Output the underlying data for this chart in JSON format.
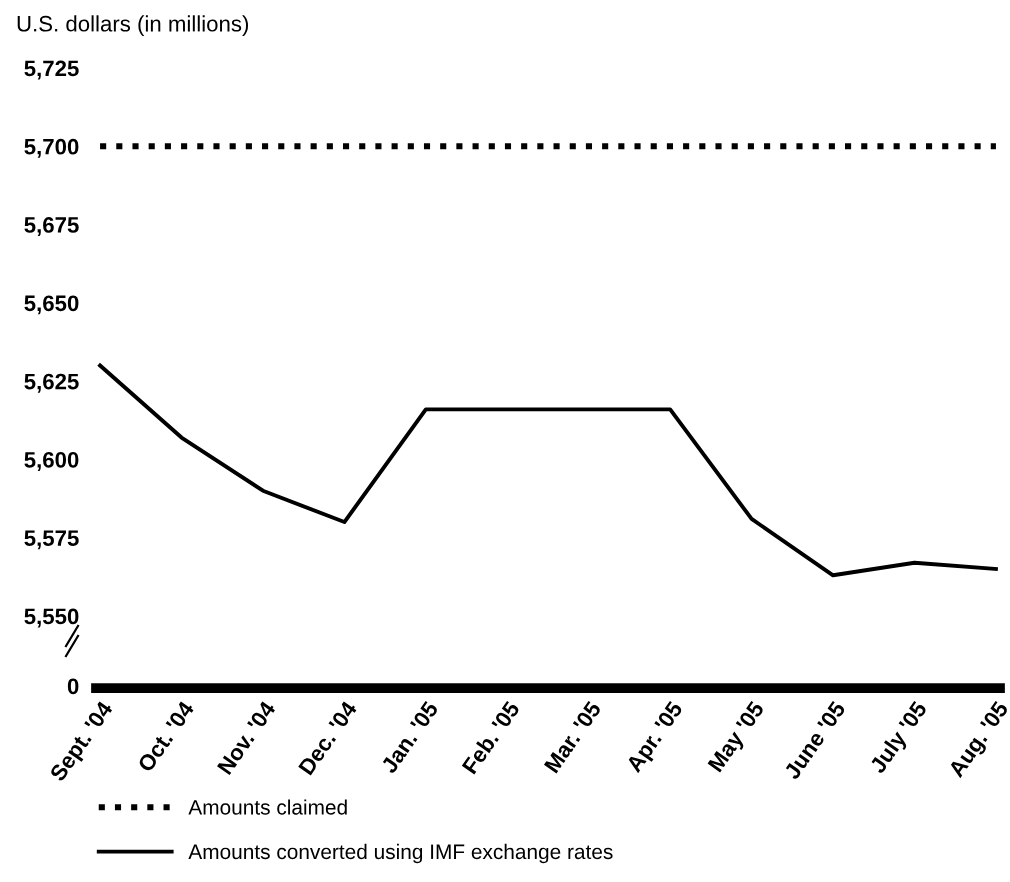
{
  "chart_data": {
    "type": "line",
    "ylabel": "U.S. dollars (in millions)",
    "categories": [
      "Sept. '04",
      "Oct. '04",
      "Nov. '04",
      "Dec. '04",
      "Jan. '05",
      "Feb. '05",
      "Mar. '05",
      "Apr. '05",
      "May '05",
      "June '05",
      "July '05",
      "Aug. '05"
    ],
    "series": [
      {
        "name": "Amounts claimed",
        "color": "#000000",
        "line_style": "dotted",
        "values": [
          5700,
          5700,
          5700,
          5700,
          5700,
          5700,
          5700,
          5700,
          5700,
          5700,
          5700,
          5700
        ]
      },
      {
        "name": "Amounts converted using IMF exchange rates",
        "color": "#000000",
        "line_style": "solid",
        "values": [
          5630,
          5607,
          5590,
          5580,
          5616,
          5616,
          5616,
          5616,
          5581,
          5563,
          5567,
          5565
        ]
      }
    ],
    "ylim": [
      5550,
      5725
    ],
    "yticks": [
      {
        "value": 5550,
        "label": "5,550"
      },
      {
        "value": 5575,
        "label": "5,575"
      },
      {
        "value": 5600,
        "label": "5,600"
      },
      {
        "value": 5625,
        "label": "5,625"
      },
      {
        "value": 5650,
        "label": "5,650"
      },
      {
        "value": 5675,
        "label": "5,675"
      },
      {
        "value": 5700,
        "label": "5,700"
      },
      {
        "value": 5725,
        "label": "5,725"
      }
    ],
    "annotations": [
      "0"
    ],
    "grid": false,
    "legend": "bottom",
    "marker": "none"
  }
}
